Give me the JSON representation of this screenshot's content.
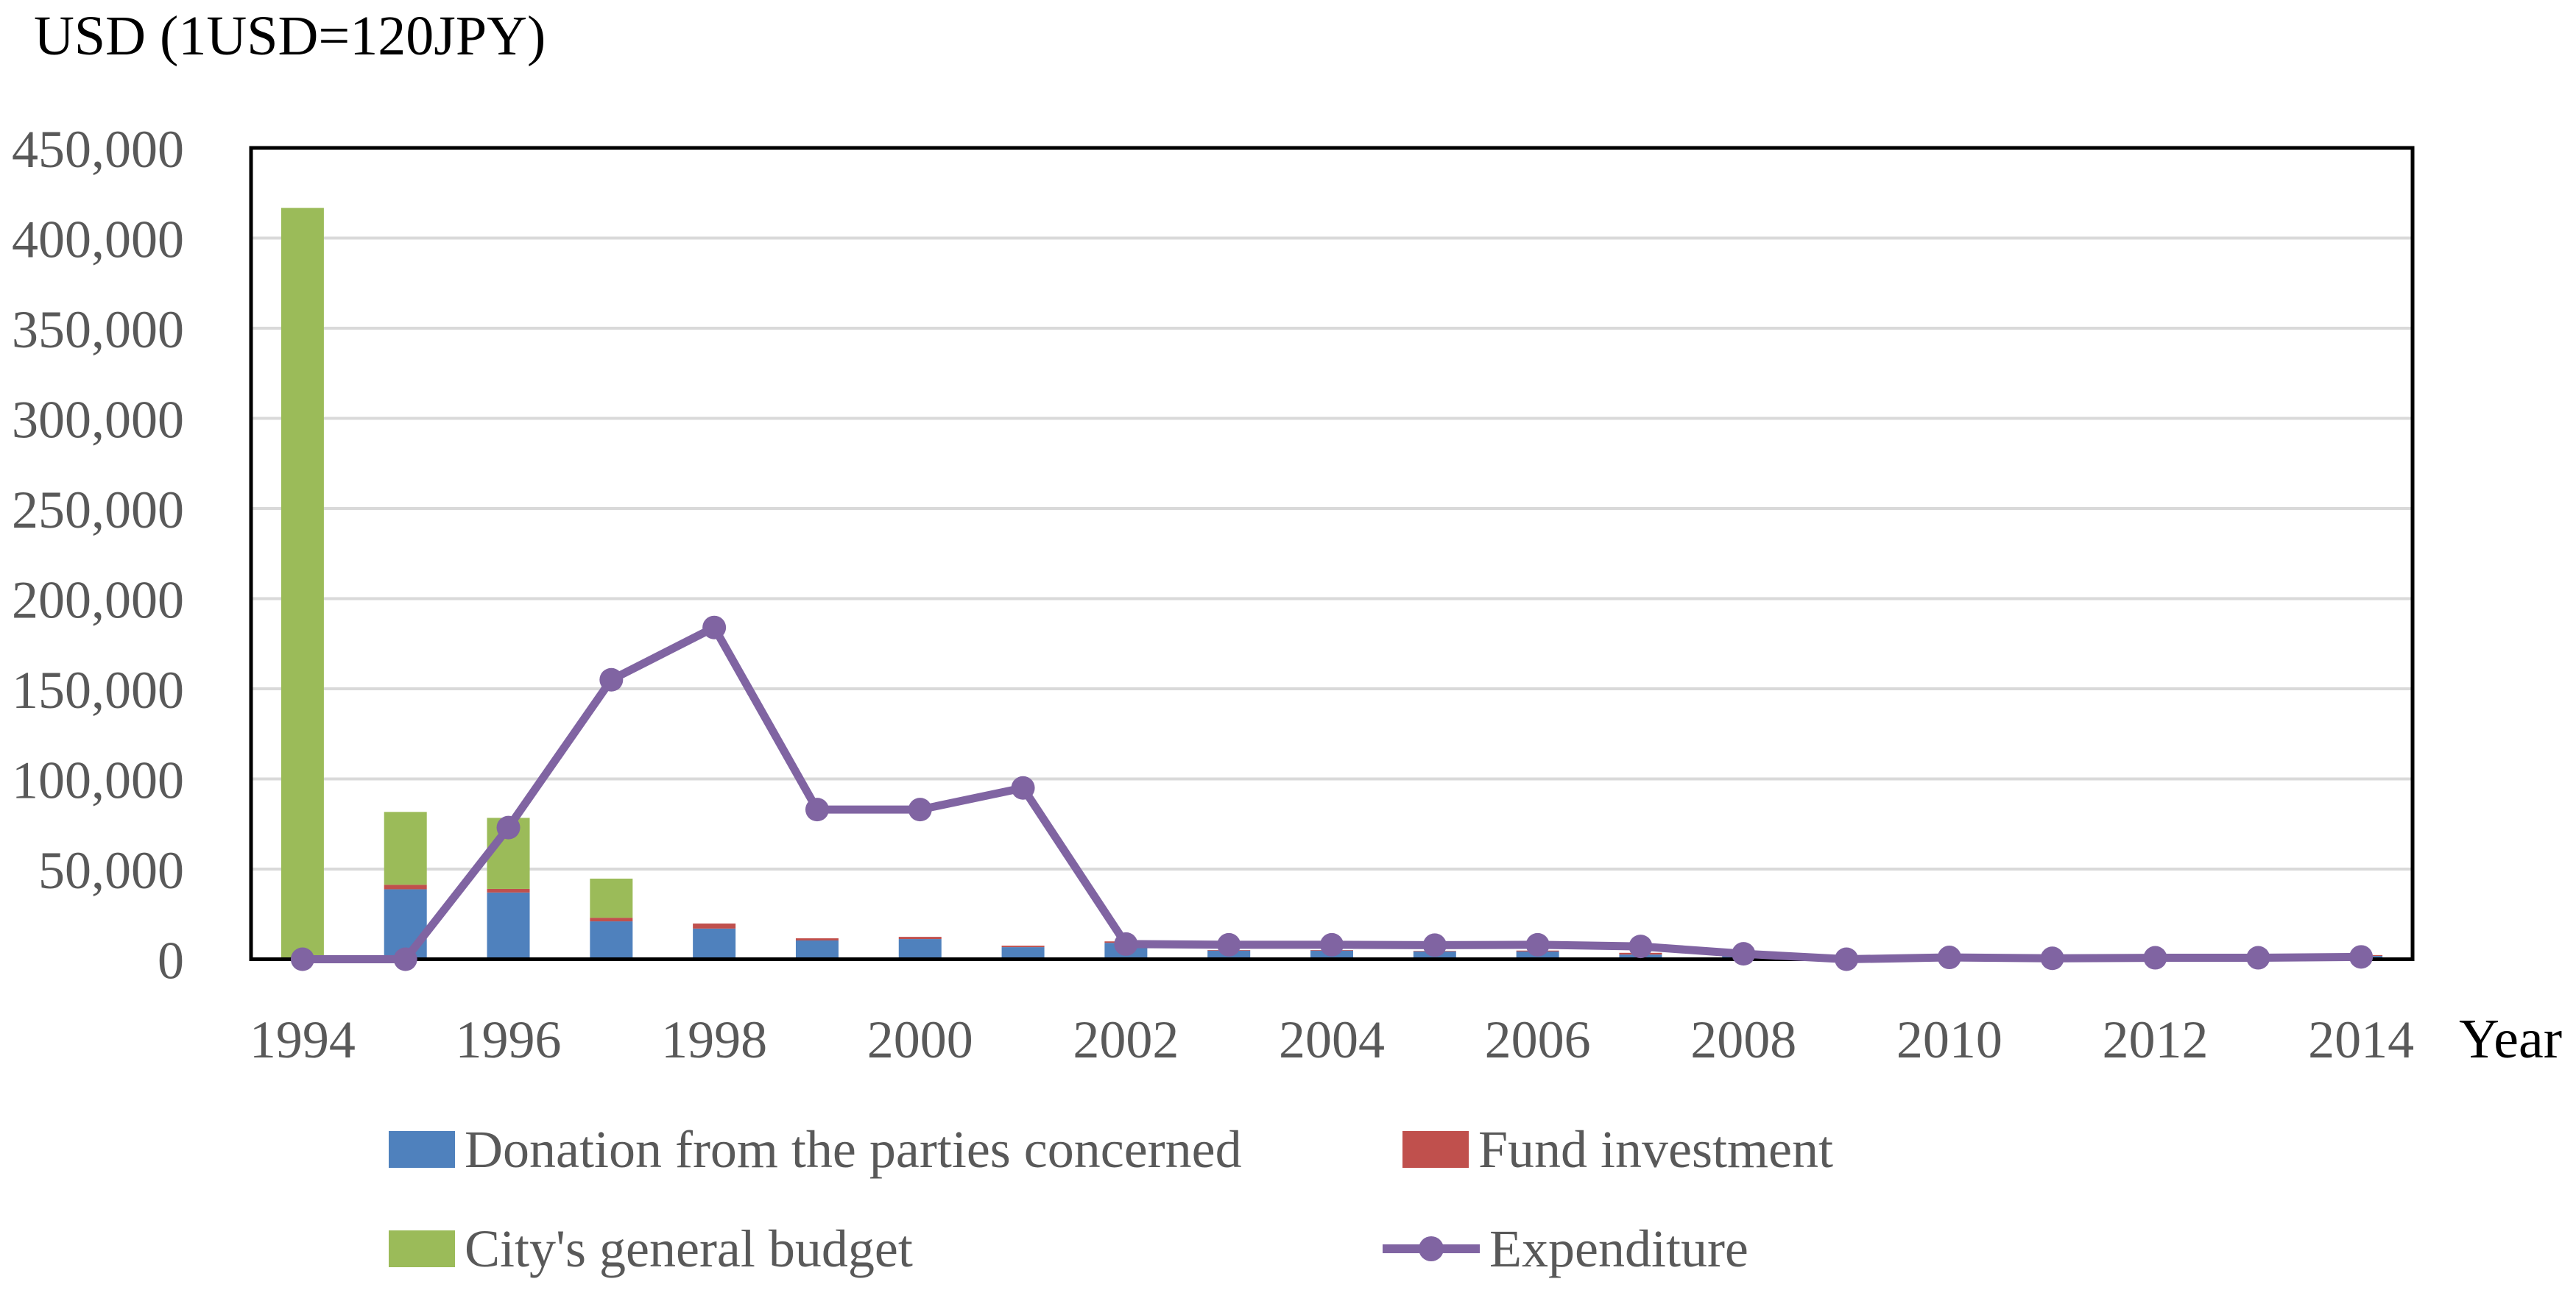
{
  "title": {
    "text": "USD (1USD=120JPY)"
  },
  "axes": {
    "y": {
      "max": 450000,
      "tick_step": 50000,
      "tick_labels": [
        "0",
        "50,000",
        "100,000",
        "150,000",
        "200,000",
        "250,000",
        "300,000",
        "350,000",
        "400,000",
        "450,000"
      ]
    },
    "x": {
      "tick_labels": [
        "1994",
        "1996",
        "1998",
        "2000",
        "2002",
        "2004",
        "2006",
        "2008",
        "2010",
        "2012",
        "2014"
      ],
      "axis_label": "Year"
    }
  },
  "colors": {
    "donation_blue": "#4F81BD",
    "fund_red": "#C0504D",
    "budget_green": "#9BBB59",
    "expenditure_purple": "#8064A2",
    "gridline": "#D9D9D9",
    "axis_border": "#000000",
    "tick_text": "#595959"
  },
  "chart_data": {
    "type": "bar",
    "subtype": "stacked-bars-with-line",
    "title": "USD (1USD=120JPY)",
    "xlabel": "Year",
    "ylabel": "USD (1USD=120JPY)",
    "ylim": [
      0,
      450000
    ],
    "grid": true,
    "legend_position": "bottom",
    "x": [
      1994,
      1995,
      1996,
      1997,
      1998,
      1999,
      2000,
      2001,
      2002,
      2003,
      2004,
      2005,
      2006,
      2007,
      2008,
      2009,
      2010,
      2011,
      2012,
      2013,
      2014
    ],
    "series": [
      {
        "name": "Donation from the parties concerned",
        "type": "bar",
        "color": "#4F81BD",
        "values": [
          0,
          38800,
          37000,
          21000,
          17000,
          10400,
          11200,
          6700,
          9100,
          4800,
          4800,
          4300,
          4300,
          2600,
          2100,
          0,
          0,
          0,
          0,
          0,
          1800
        ]
      },
      {
        "name": "Fund investment",
        "type": "bar",
        "color": "#C0504D",
        "values": [
          0,
          2500,
          2000,
          2000,
          2800,
          1200,
          1200,
          800,
          800,
          300,
          300,
          300,
          500,
          950,
          200,
          0,
          0,
          0,
          0,
          0,
          500
        ]
      },
      {
        "name": "City's general budget",
        "type": "bar",
        "color": "#9BBB59",
        "values": [
          416700,
          40400,
          39400,
          21700,
          0,
          0,
          0,
          0,
          0,
          0,
          0,
          0,
          0,
          0,
          0,
          0,
          0,
          0,
          0,
          0,
          0
        ]
      },
      {
        "name": "Expenditure",
        "type": "line",
        "color": "#8064A2",
        "values": [
          0,
          0,
          73000,
          155000,
          184000,
          83000,
          83000,
          95000,
          8400,
          8000,
          8000,
          7800,
          8000,
          7100,
          3000,
          0,
          1000,
          500,
          800,
          800,
          1300
        ]
      }
    ]
  }
}
